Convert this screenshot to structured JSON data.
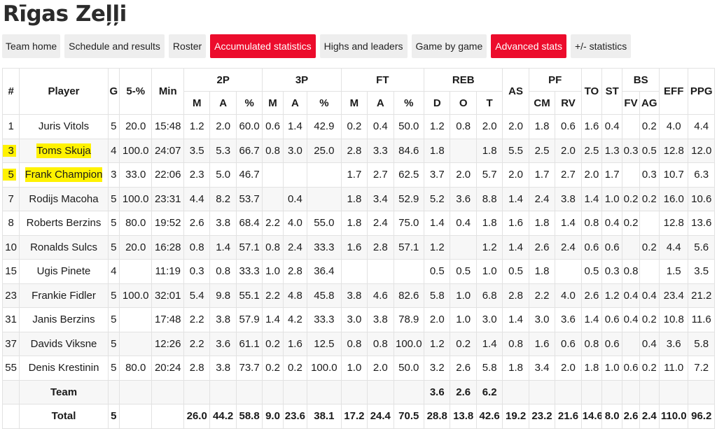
{
  "page_title": "Rīgas Zeļļi",
  "tabs": [
    {
      "label": "Team home",
      "active": false
    },
    {
      "label": "Schedule and results",
      "active": false
    },
    {
      "label": "Roster",
      "active": false
    },
    {
      "label": "Accumulated statistics",
      "active": true
    },
    {
      "label": "Highs and leaders",
      "active": false
    },
    {
      "label": "Game by game",
      "active": false
    },
    {
      "label": "Advanced stats",
      "active": true
    },
    {
      "label": "+/- statistics",
      "active": false
    }
  ],
  "colors": {
    "accent": "#ec0c2c",
    "tab_bg": "#eeeeee",
    "highlight": "#fff200"
  },
  "header": {
    "top": [
      "#",
      "Player",
      "G",
      "5-%",
      "Min",
      "2P",
      "3P",
      "FT",
      "REB",
      "AS",
      "PF",
      "TO",
      "ST",
      "BS",
      "EFF",
      "PPG"
    ],
    "sub": [
      "M",
      "A",
      "%",
      "M",
      "A",
      "%",
      "M",
      "A",
      "%",
      "D",
      "O",
      "T",
      "CM",
      "RV",
      "FV",
      "AG"
    ]
  },
  "rows": [
    {
      "num": "1",
      "player": "Juris Vitols",
      "g": "5",
      "p5": "20.0",
      "min": "15:48",
      "p2m": "1.2",
      "p2a": "2.0",
      "p2p": "60.0",
      "p3m": "0.6",
      "p3a": "1.4",
      "p3p": "42.9",
      "ftm": "0.2",
      "fta": "0.4",
      "ftp": "50.0",
      "rd": "1.2",
      "ro": "0.8",
      "rt": "2.0",
      "as": "2.0",
      "cm": "1.8",
      "rv": "0.6",
      "to": "1.6",
      "st": "0.4",
      "fv": "",
      "ag": "0.2",
      "eff": "4.0",
      "ppg": "4.4",
      "highlight": false
    },
    {
      "num": "3",
      "player": "Toms Skuja",
      "g": "4",
      "p5": "100.0",
      "min": "24:07",
      "p2m": "3.5",
      "p2a": "5.3",
      "p2p": "66.7",
      "p3m": "0.8",
      "p3a": "3.0",
      "p3p": "25.0",
      "ftm": "2.8",
      "fta": "3.3",
      "ftp": "84.6",
      "rd": "1.8",
      "ro": "",
      "rt": "1.8",
      "as": "5.5",
      "cm": "2.5",
      "rv": "2.0",
      "to": "2.5",
      "st": "1.3",
      "fv": "0.3",
      "ag": "0.5",
      "eff": "12.8",
      "ppg": "12.0",
      "highlight": true
    },
    {
      "num": "5",
      "player": "Frank Champion",
      "g": "3",
      "p5": "33.0",
      "min": "22:06",
      "p2m": "2.3",
      "p2a": "5.0",
      "p2p": "46.7",
      "p3m": "",
      "p3a": "",
      "p3p": "",
      "ftm": "1.7",
      "fta": "2.7",
      "ftp": "62.5",
      "rd": "3.7",
      "ro": "2.0",
      "rt": "5.7",
      "as": "2.0",
      "cm": "1.7",
      "rv": "2.7",
      "to": "2.0",
      "st": "1.7",
      "fv": "",
      "ag": "0.3",
      "eff": "10.7",
      "ppg": "6.3",
      "highlight": true
    },
    {
      "num": "7",
      "player": "Rodijs Macoha",
      "g": "5",
      "p5": "100.0",
      "min": "23:31",
      "p2m": "4.4",
      "p2a": "8.2",
      "p2p": "53.7",
      "p3m": "",
      "p3a": "0.4",
      "p3p": "",
      "ftm": "1.8",
      "fta": "3.4",
      "ftp": "52.9",
      "rd": "5.2",
      "ro": "3.6",
      "rt": "8.8",
      "as": "1.4",
      "cm": "2.4",
      "rv": "3.8",
      "to": "1.4",
      "st": "1.0",
      "fv": "0.2",
      "ag": "0.2",
      "eff": "16.0",
      "ppg": "10.6",
      "highlight": false
    },
    {
      "num": "8",
      "player": "Roberts Berzins",
      "g": "5",
      "p5": "80.0",
      "min": "19:52",
      "p2m": "2.6",
      "p2a": "3.8",
      "p2p": "68.4",
      "p3m": "2.2",
      "p3a": "4.0",
      "p3p": "55.0",
      "ftm": "1.8",
      "fta": "2.4",
      "ftp": "75.0",
      "rd": "1.4",
      "ro": "0.4",
      "rt": "1.8",
      "as": "1.6",
      "cm": "1.8",
      "rv": "1.4",
      "to": "0.8",
      "st": "0.4",
      "fv": "0.2",
      "ag": "",
      "eff": "12.8",
      "ppg": "13.6",
      "highlight": false
    },
    {
      "num": "10",
      "player": "Ronalds Sulcs",
      "g": "5",
      "p5": "20.0",
      "min": "16:28",
      "p2m": "0.8",
      "p2a": "1.4",
      "p2p": "57.1",
      "p3m": "0.8",
      "p3a": "2.4",
      "p3p": "33.3",
      "ftm": "1.6",
      "fta": "2.8",
      "ftp": "57.1",
      "rd": "1.2",
      "ro": "",
      "rt": "1.2",
      "as": "1.4",
      "cm": "2.6",
      "rv": "2.4",
      "to": "0.6",
      "st": "0.6",
      "fv": "",
      "ag": "0.2",
      "eff": "4.4",
      "ppg": "5.6",
      "highlight": false
    },
    {
      "num": "15",
      "player": "Ugis Pinete",
      "g": "4",
      "p5": "",
      "min": "11:19",
      "p2m": "0.3",
      "p2a": "0.8",
      "p2p": "33.3",
      "p3m": "1.0",
      "p3a": "2.8",
      "p3p": "36.4",
      "ftm": "",
      "fta": "",
      "ftp": "",
      "rd": "0.5",
      "ro": "0.5",
      "rt": "1.0",
      "as": "0.5",
      "cm": "1.8",
      "rv": "",
      "to": "0.5",
      "st": "0.3",
      "fv": "0.8",
      "ag": "",
      "eff": "1.5",
      "ppg": "3.5",
      "highlight": false
    },
    {
      "num": "23",
      "player": "Frankie Fidler",
      "g": "5",
      "p5": "100.0",
      "min": "32:01",
      "p2m": "5.4",
      "p2a": "9.8",
      "p2p": "55.1",
      "p3m": "2.2",
      "p3a": "4.8",
      "p3p": "45.8",
      "ftm": "3.8",
      "fta": "4.6",
      "ftp": "82.6",
      "rd": "5.8",
      "ro": "1.0",
      "rt": "6.8",
      "as": "2.8",
      "cm": "2.2",
      "rv": "4.0",
      "to": "2.6",
      "st": "1.2",
      "fv": "0.4",
      "ag": "0.4",
      "eff": "23.4",
      "ppg": "21.2",
      "highlight": false
    },
    {
      "num": "31",
      "player": "Janis Berzins",
      "g": "5",
      "p5": "",
      "min": "17:48",
      "p2m": "2.2",
      "p2a": "3.8",
      "p2p": "57.9",
      "p3m": "1.4",
      "p3a": "4.2",
      "p3p": "33.3",
      "ftm": "3.0",
      "fta": "3.8",
      "ftp": "78.9",
      "rd": "2.0",
      "ro": "1.0",
      "rt": "3.0",
      "as": "1.4",
      "cm": "3.0",
      "rv": "3.6",
      "to": "1.4",
      "st": "0.6",
      "fv": "0.4",
      "ag": "0.2",
      "eff": "10.8",
      "ppg": "11.6",
      "highlight": false
    },
    {
      "num": "37",
      "player": "Davids Viksne",
      "g": "5",
      "p5": "",
      "min": "12:26",
      "p2m": "2.2",
      "p2a": "3.6",
      "p2p": "61.1",
      "p3m": "0.2",
      "p3a": "1.6",
      "p3p": "12.5",
      "ftm": "0.8",
      "fta": "0.8",
      "ftp": "100.0",
      "rd": "1.2",
      "ro": "0.2",
      "rt": "1.4",
      "as": "0.8",
      "cm": "1.6",
      "rv": "0.6",
      "to": "0.8",
      "st": "0.6",
      "fv": "",
      "ag": "0.4",
      "eff": "3.6",
      "ppg": "5.8",
      "highlight": false
    },
    {
      "num": "55",
      "player": "Denis Krestinin",
      "g": "5",
      "p5": "80.0",
      "min": "20:24",
      "p2m": "2.8",
      "p2a": "3.8",
      "p2p": "73.7",
      "p3m": "0.2",
      "p3a": "0.2",
      "p3p": "100.0",
      "ftm": "1.0",
      "fta": "2.0",
      "ftp": "50.0",
      "rd": "3.2",
      "ro": "2.6",
      "rt": "5.8",
      "as": "1.8",
      "cm": "3.4",
      "rv": "2.0",
      "to": "1.8",
      "st": "1.0",
      "fv": "0.6",
      "ag": "0.2",
      "eff": "11.0",
      "ppg": "7.2",
      "highlight": false
    }
  ],
  "team_row": {
    "label": "Team",
    "rd": "3.6",
    "ro": "2.6",
    "rt": "6.2"
  },
  "total_row": {
    "label": "Total",
    "g": "5",
    "p2m": "26.0",
    "p2a": "44.2",
    "p2p": "58.8",
    "p3m": "9.0",
    "p3a": "23.6",
    "p3p": "38.1",
    "ftm": "17.2",
    "fta": "24.4",
    "ftp": "70.5",
    "rd": "28.8",
    "ro": "13.8",
    "rt": "42.6",
    "as": "19.2",
    "cm": "23.2",
    "rv": "21.6",
    "to": "14.6",
    "st": "8.0",
    "fv": "2.6",
    "ag": "2.4",
    "eff": "110.0",
    "ppg": "96.2"
  }
}
